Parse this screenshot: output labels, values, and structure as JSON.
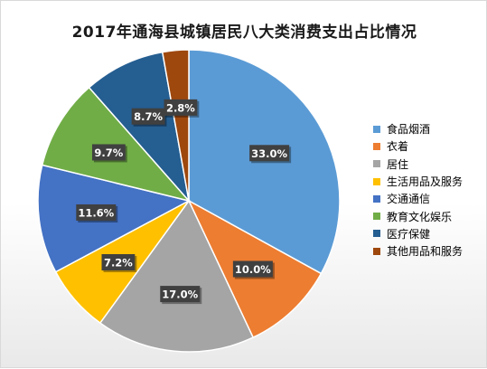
{
  "chart_data": {
    "type": "pie",
    "title": "2017年通海县城镇居民八大类消费支出占比情况",
    "categories": [
      "食品烟酒",
      "衣着",
      "居住",
      "生活用品及服务",
      "交通通信",
      "教育文化娱乐",
      "医疗保健",
      "其他用品和服务"
    ],
    "values": [
      33.0,
      10.0,
      17.0,
      7.2,
      11.6,
      9.7,
      8.7,
      2.8
    ],
    "labels": [
      "33.0%",
      "10.0%",
      "17.0%",
      "7.2%",
      "11.6%",
      "9.7%",
      "8.7%",
      "2.8%"
    ],
    "colors": [
      "#5B9BD5",
      "#ED7D31",
      "#A5A5A5",
      "#FFC000",
      "#4472C4",
      "#70AD47",
      "#255E91",
      "#9E480E"
    ],
    "legend_position": "right"
  }
}
